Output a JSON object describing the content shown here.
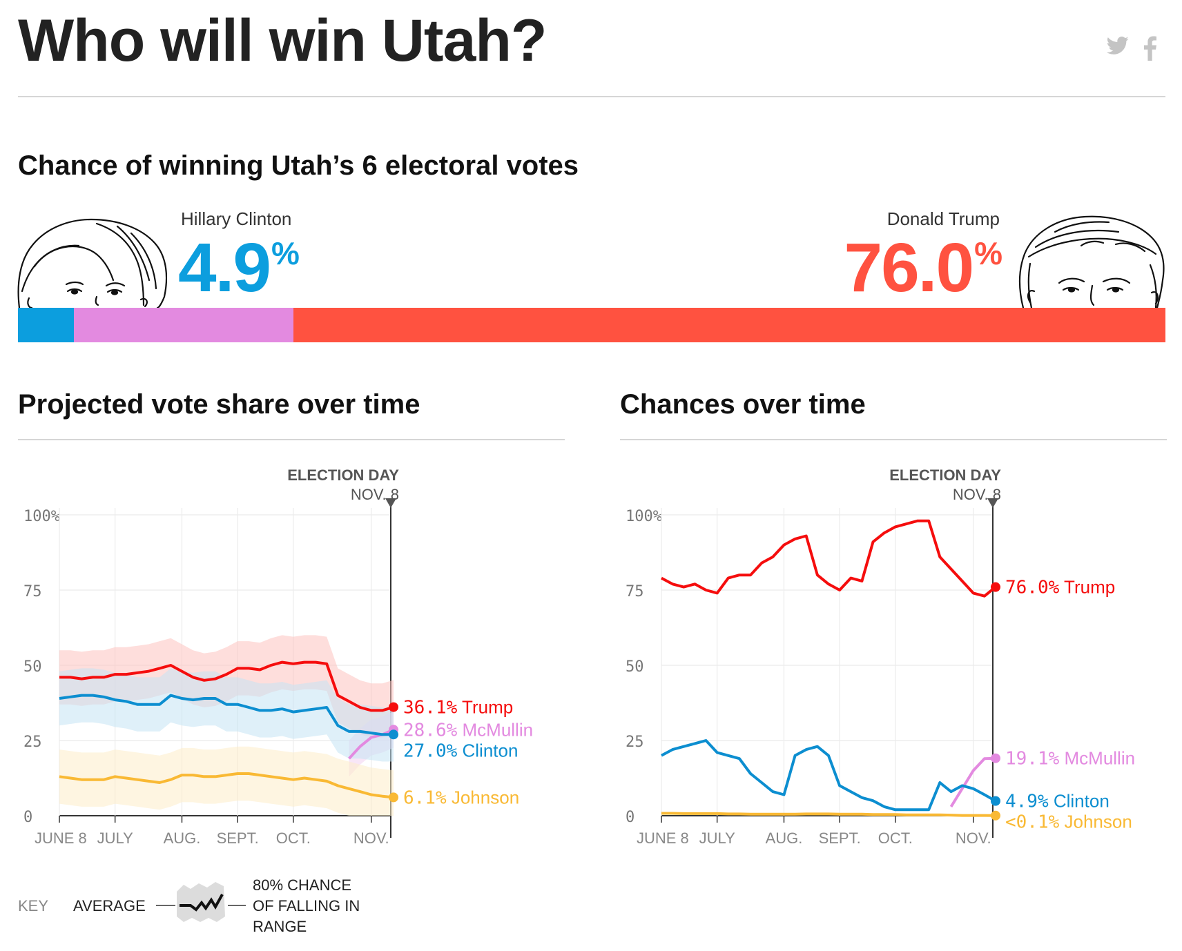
{
  "header": {
    "title": "Who will win Utah?",
    "share": [
      {
        "label": "twitter",
        "icon": "twitter-icon"
      },
      {
        "label": "facebook",
        "icon": "facebook-icon"
      }
    ]
  },
  "chance": {
    "title": "Chance of winning Utah’s 6 electoral votes",
    "left": {
      "name": "Hillary Clinton",
      "value": "4.9",
      "unit": "%",
      "color": "#0c9ede"
    },
    "right": {
      "name": "Donald Trump",
      "value": "76.0",
      "unit": "%",
      "color": "#ff5240"
    },
    "bar": [
      {
        "candidate": "Clinton",
        "share": 4.9,
        "color": "#0c9ede"
      },
      {
        "candidate": "McMullin",
        "share": 19.1,
        "color": "#e38ae0"
      },
      {
        "candidate": "Trump",
        "share": 76.0,
        "color": "#ff5240"
      }
    ]
  },
  "chart_data": [
    {
      "type": "line",
      "title": "Projected vote share over time",
      "election_day": {
        "label": "ELECTION DAY",
        "date": "NOV. 8"
      },
      "y_ticks": [
        "100%",
        "75",
        "50",
        "25",
        "0"
      ],
      "x_ticks": [
        "JUNE 8",
        "JULY",
        "AUG.",
        "SEPT.",
        "OCT.",
        "NOV."
      ],
      "ylim": [
        0,
        100
      ],
      "series": [
        {
          "name": "Trump",
          "final": "36.1%",
          "color": "#f50d0d",
          "band": "#fdc3c0",
          "values": [
            46,
            46,
            45.5,
            46,
            46,
            47,
            47,
            47.5,
            48,
            49,
            50,
            48,
            46,
            45,
            45.5,
            47,
            49,
            49,
            48.5,
            50,
            51,
            50.5,
            51,
            51,
            50.5,
            40,
            38,
            36,
            35,
            35,
            36.1
          ]
        },
        {
          "name": "McMullin",
          "final": "28.6%",
          "color": "#e38ae0",
          "band": "#f3d2f1",
          "values": [
            null,
            null,
            null,
            null,
            null,
            null,
            null,
            null,
            null,
            null,
            null,
            null,
            null,
            null,
            null,
            null,
            null,
            null,
            null,
            null,
            null,
            null,
            null,
            null,
            null,
            null,
            19,
            23,
            26,
            27,
            28.6
          ]
        },
        {
          "name": "Clinton",
          "final": "27.0%",
          "color": "#0c8ed0",
          "band": "#c5e4f4",
          "values": [
            39,
            39.5,
            40,
            40,
            39.5,
            38.5,
            38,
            37,
            37,
            37,
            40,
            39,
            38.5,
            39,
            39,
            37,
            37,
            36,
            35,
            35,
            35.5,
            34.5,
            35,
            35.5,
            36,
            30,
            28,
            28,
            27.5,
            27,
            27
          ]
        },
        {
          "name": "Johnson",
          "final": "6.1%",
          "color": "#f9b934",
          "band": "#fdecc8",
          "values": [
            13,
            12.5,
            12,
            12,
            12,
            13,
            12.5,
            12,
            11.5,
            11,
            12,
            13.5,
            13.5,
            13,
            13,
            13.5,
            14,
            14,
            13.5,
            13,
            12.5,
            12,
            12.5,
            12,
            11.5,
            10,
            9,
            8,
            7,
            6.5,
            6.1
          ]
        }
      ]
    },
    {
      "type": "line",
      "title": "Chances over time",
      "election_day": {
        "label": "ELECTION DAY",
        "date": "NOV. 8"
      },
      "y_ticks": [
        "100%",
        "75",
        "50",
        "25",
        "0"
      ],
      "x_ticks": [
        "JUNE 8",
        "JULY",
        "AUG.",
        "SEPT.",
        "OCT.",
        "NOV."
      ],
      "ylim": [
        0,
        100
      ],
      "series": [
        {
          "name": "Trump",
          "final": "76.0%",
          "color": "#f50d0d",
          "values": [
            79,
            77,
            76,
            77,
            75,
            74,
            79,
            80,
            80,
            84,
            86,
            90,
            92,
            93,
            80,
            77,
            75,
            79,
            78,
            91,
            94,
            96,
            97,
            98,
            98,
            86,
            82,
            78,
            74,
            73,
            76.0
          ]
        },
        {
          "name": "McMullin",
          "final": "19.1%",
          "color": "#e38ae0",
          "values": [
            null,
            null,
            null,
            null,
            null,
            null,
            null,
            null,
            null,
            null,
            null,
            null,
            null,
            null,
            null,
            null,
            null,
            null,
            null,
            null,
            null,
            null,
            null,
            null,
            null,
            null,
            3,
            9,
            15,
            19,
            19.1
          ]
        },
        {
          "name": "Clinton",
          "final": "4.9%",
          "color": "#0c8ed0",
          "values": [
            20,
            22,
            23,
            24,
            25,
            21,
            20,
            19,
            14,
            11,
            8,
            7,
            20,
            22,
            23,
            20,
            10,
            8,
            6,
            5,
            3,
            2,
            2,
            2,
            2,
            11,
            8,
            10,
            9,
            7,
            4.9
          ]
        },
        {
          "name": "Johnson",
          "final": "<0.1%",
          "color": "#f9b934",
          "values": [
            0.8,
            0.8,
            0.7,
            0.7,
            0.7,
            0.7,
            0.6,
            0.6,
            0.5,
            0.5,
            0.5,
            0.5,
            0.5,
            0.6,
            0.6,
            0.6,
            0.5,
            0.5,
            0.5,
            0.4,
            0.4,
            0.4,
            0.3,
            0.3,
            0.3,
            0.3,
            0.2,
            0.1,
            0.1,
            0.1,
            0.05
          ]
        }
      ]
    }
  ],
  "key": {
    "label": "KEY",
    "average": "AVERAGE",
    "range_lines": [
      "80% CHANCE",
      "OF FALLING IN",
      "RANGE"
    ]
  }
}
